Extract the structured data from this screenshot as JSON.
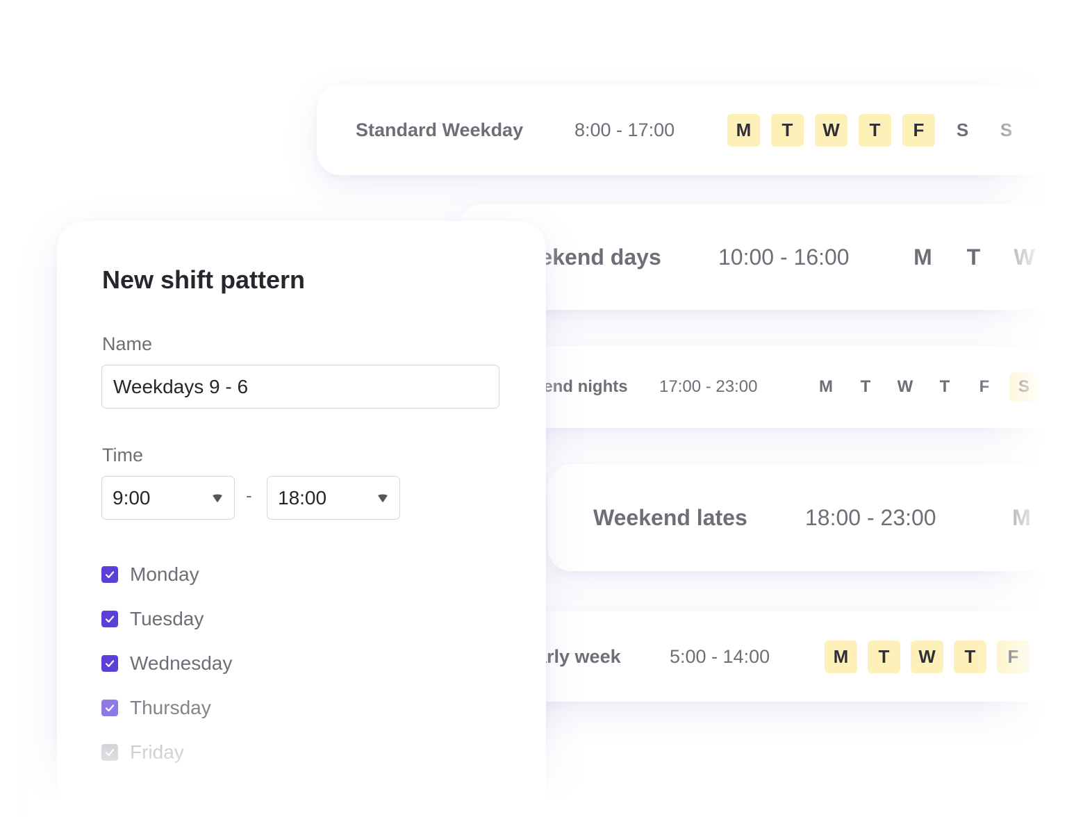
{
  "shift_cards": [
    {
      "name": "Standard Weekday",
      "time": "8:00 - 17:00",
      "days": [
        {
          "letter": "M",
          "active": true
        },
        {
          "letter": "T",
          "active": true
        },
        {
          "letter": "W",
          "active": true
        },
        {
          "letter": "T",
          "active": true
        },
        {
          "letter": "F",
          "active": true
        },
        {
          "letter": "S",
          "active": false
        },
        {
          "letter": "S",
          "active": false
        }
      ]
    },
    {
      "name": "Weekend days",
      "time": "10:00 - 16:00",
      "days": [
        {
          "letter": "M",
          "active": false
        },
        {
          "letter": "T",
          "active": false
        },
        {
          "letter": "W",
          "active": false
        }
      ]
    },
    {
      "name": "Weekend nights",
      "time": "17:00 - 23:00",
      "days": [
        {
          "letter": "M",
          "active": false
        },
        {
          "letter": "T",
          "active": false
        },
        {
          "letter": "W",
          "active": false
        },
        {
          "letter": "T",
          "active": false
        },
        {
          "letter": "F",
          "active": false
        },
        {
          "letter": "S",
          "active": true
        }
      ]
    },
    {
      "name": "Weekend lates",
      "time": "18:00 - 23:00",
      "days": [
        {
          "letter": "M",
          "active": false
        }
      ]
    },
    {
      "name": "Early week",
      "time": "5:00 - 14:00",
      "days": [
        {
          "letter": "M",
          "active": true
        },
        {
          "letter": "T",
          "active": true
        },
        {
          "letter": "W",
          "active": true
        },
        {
          "letter": "T",
          "active": true
        },
        {
          "letter": "F",
          "active": true
        }
      ]
    }
  ],
  "form": {
    "title": "New shift pattern",
    "name_label": "Name",
    "name_value": "Weekdays 9 - 6",
    "time_label": "Time",
    "start_time": "9:00",
    "separator": "-",
    "end_time": "18:00",
    "days": [
      {
        "label": "Monday",
        "checked": true
      },
      {
        "label": "Tuesday",
        "checked": true
      },
      {
        "label": "Wednesday",
        "checked": true
      },
      {
        "label": "Thursday",
        "checked": true
      },
      {
        "label": "Friday",
        "checked": true
      }
    ]
  },
  "colors": {
    "accent": "#5b3fd8",
    "day_active_bg": "#fdf0b8",
    "text_primary": "#26262c",
    "text_secondary": "#6e6e78"
  },
  "icons": {
    "dropdown": "caret-down-icon",
    "checkbox": "checkmark-icon"
  }
}
